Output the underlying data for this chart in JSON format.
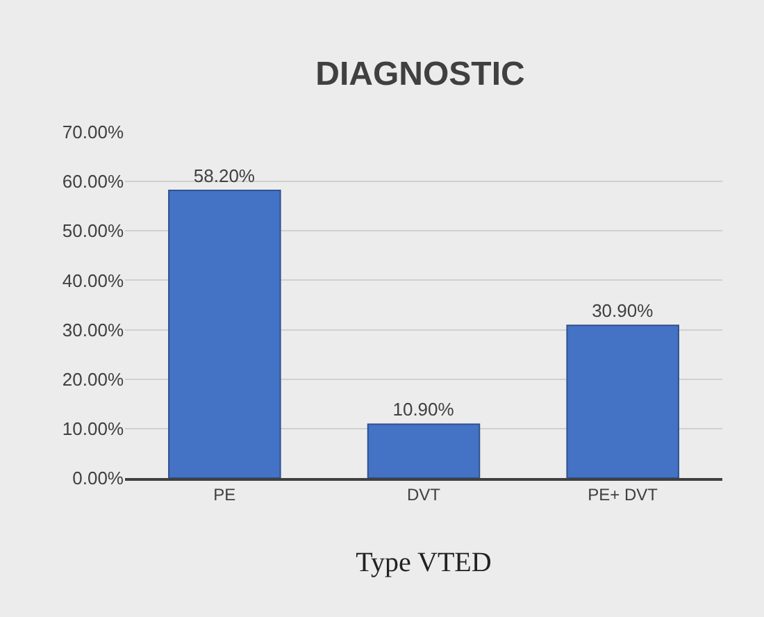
{
  "chart_data": {
    "type": "bar",
    "title": "DIAGNOSTIC",
    "xlabel": "Type VTED",
    "categories": [
      "PE",
      "DVT",
      "PE+ DVT"
    ],
    "values": [
      58.2,
      10.9,
      30.9
    ],
    "value_labels": [
      "58.20%",
      "10.90%",
      "30.90%"
    ],
    "color": "#4472c4",
    "ylim": [
      0,
      70
    ],
    "yticks": [
      {
        "value": 0,
        "label": "0.00%"
      },
      {
        "value": 10,
        "label": "10.00%"
      },
      {
        "value": 20,
        "label": "20.00%"
      },
      {
        "value": 30,
        "label": "30.00%"
      },
      {
        "value": 40,
        "label": "40.00%"
      },
      {
        "value": 50,
        "label": "50.00%"
      },
      {
        "value": 60,
        "label": "60.00%"
      },
      {
        "value": 70,
        "label": "70.00%"
      }
    ],
    "grid": "y",
    "legend": false
  }
}
